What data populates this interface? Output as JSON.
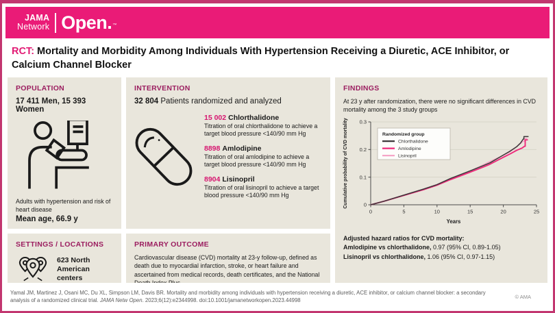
{
  "brand": {
    "name_top": "JAMA",
    "name_bottom": "Network",
    "product": "Open.",
    "trademark": "TM"
  },
  "title": {
    "tag": "RCT:",
    "text": "Mortality and Morbidity Among Individuals With Hypertension Receiving a Diuretic, ACE Inhibitor, or Calcium Channel Blocker"
  },
  "colors": {
    "brand_pink": "#ea1b77",
    "border_pink": "#c2366f",
    "accent_pink": "#d6156f",
    "heading_berry": "#9b1d5f",
    "panel_bg": "#e9e6dc"
  },
  "population": {
    "heading": "POPULATION",
    "count": "17 411 Men, 15 393 Women",
    "icon": "patient-blood-pressure-icon",
    "description": "Adults with hypertension and risk of heart disease",
    "mean_age": "Mean age, 66.9 y"
  },
  "intervention": {
    "heading": "INTERVENTION",
    "count": "32 804",
    "count_label": " Patients randomized and analyzed",
    "icon": "pill-capsule-icon",
    "arms": [
      {
        "n": "15 002",
        "name": "Chlorthalidone",
        "description": "Titration of oral chlorthalidone to achieve a target blood pressure <140/90 mm Hg"
      },
      {
        "n": "8898",
        "name": "Amlodipine",
        "description": "Titration of oral amlodipine to achieve a target blood pressure <140/90 mm Hg"
      },
      {
        "n": "8904",
        "name": "Lisinopril",
        "description": "Titration of oral lisinopril to achieve a target blood pressure <140/90 mm Hg"
      }
    ]
  },
  "findings": {
    "heading": "FINDINGS",
    "summary": "At 23 y after randomization, there were no significant differences in CVD mortality among the 3 study groups",
    "hazard_title": "Adjusted hazard ratios for CVD mortality:",
    "hazard_lines": [
      {
        "label": "Amlodipine vs chlorthalidone,",
        "value": " 0.97 (95% CI, 0.89-1.05)"
      },
      {
        "label": "Lisinopril vs chlorthalidone,",
        "value": " 1.06 (95% CI, 0.97-1.15)"
      }
    ]
  },
  "settings": {
    "heading": "SETTINGS / LOCATIONS",
    "icon": "map-pins-icon",
    "text": "623 North American centers"
  },
  "primary_outcome": {
    "heading": "PRIMARY OUTCOME",
    "text": "Cardiovascular disease (CVD) mortality at 23-y follow-up, defined as death due to myocardial infarction, stroke, or heart failure and ascertained from medical records, death certificates, and the National Death Index Plus"
  },
  "footer": {
    "citation_authors": "Yamal JM, Martinez J, Osani MC, Du XL, Simpson LM, Davis BR. Mortality and morbidity among individuals with hypertension receiving a diuretic, ACE inhibitor, or calcium channel blocker: a secondary analysis of a randomized clinical trial. ",
    "citation_journal": "JAMA Netw Open",
    "citation_rest": ". 2023;6(12):e2344998. doi:10.1001/jamanetworkopen.2023.44998",
    "copyright": "© AMA"
  },
  "chart_data": {
    "type": "line",
    "title": "",
    "xlabel": "Years",
    "ylabel": "Cumulative probability of CVD mortality",
    "xlim": [
      0,
      25
    ],
    "ylim": [
      0,
      0.3
    ],
    "xticks": [
      0,
      5,
      10,
      15,
      20,
      25
    ],
    "yticks": [
      0,
      0.1,
      0.2,
      0.3
    ],
    "grid": "horizontal",
    "legend_title": "Randomized group",
    "legend_position": "top-left",
    "series": [
      {
        "name": "Chlorthalidone",
        "color": "#3b3738",
        "width": 1.5,
        "x": [
          0,
          2,
          5,
          8,
          10,
          12,
          15,
          17,
          18,
          20,
          21,
          22,
          22.6,
          23,
          23.1,
          23.1,
          23.8
        ],
        "y": [
          0,
          0.013,
          0.035,
          0.057,
          0.073,
          0.095,
          0.123,
          0.142,
          0.152,
          0.18,
          0.194,
          0.21,
          0.224,
          0.238,
          0.238,
          0.247,
          0.247
        ]
      },
      {
        "name": "Amlodipine",
        "color": "#ee2a7b",
        "width": 1.9,
        "x": [
          0,
          2,
          5,
          8,
          10,
          12,
          15,
          17,
          18,
          20,
          21,
          22,
          22.8,
          23.2,
          23.3,
          23.3,
          23.7
        ],
        "y": [
          0,
          0.013,
          0.034,
          0.055,
          0.071,
          0.091,
          0.118,
          0.137,
          0.147,
          0.172,
          0.184,
          0.197,
          0.205,
          0.212,
          0.212,
          0.235,
          0.235
        ]
      },
      {
        "name": "Lisinopril",
        "color": "#f5a5c8",
        "width": 1.6,
        "x": [
          0,
          2,
          5,
          8,
          10,
          12,
          15,
          17,
          18,
          19,
          20,
          21,
          22,
          22.7,
          23,
          23.2,
          23.2,
          23.6
        ],
        "y": [
          0,
          0.013,
          0.035,
          0.057,
          0.074,
          0.094,
          0.122,
          0.145,
          0.157,
          0.168,
          0.179,
          0.192,
          0.21,
          0.224,
          0.23,
          0.23,
          0.24,
          0.24
        ]
      }
    ]
  }
}
